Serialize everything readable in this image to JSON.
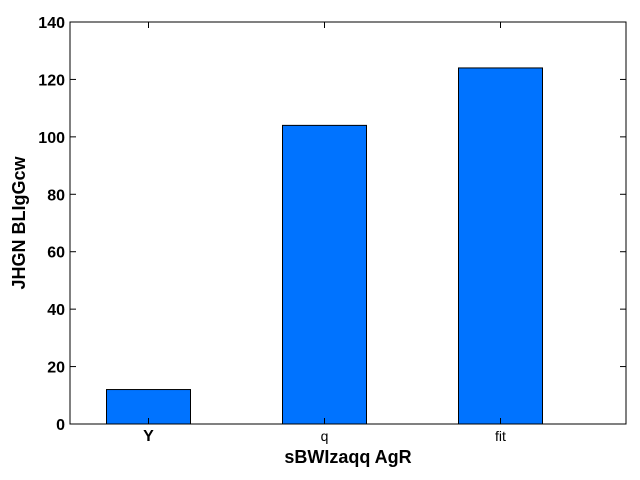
{
  "chart_data": {
    "type": "bar",
    "categories": [
      "Y",
      "q",
      "fit"
    ],
    "category_label_weights": [
      "bold",
      "normal",
      "normal"
    ],
    "values": [
      12,
      104,
      124
    ],
    "title": "",
    "xlabel": "sBWIzaqq AgR",
    "ylabel": "JHGN BLIgGcw",
    "ylim": [
      0,
      140
    ],
    "yticks": [
      0,
      20,
      40,
      60,
      80,
      100,
      120,
      140
    ],
    "grid": false,
    "bar_color": "#0073ff",
    "edge_color": "#000000"
  }
}
